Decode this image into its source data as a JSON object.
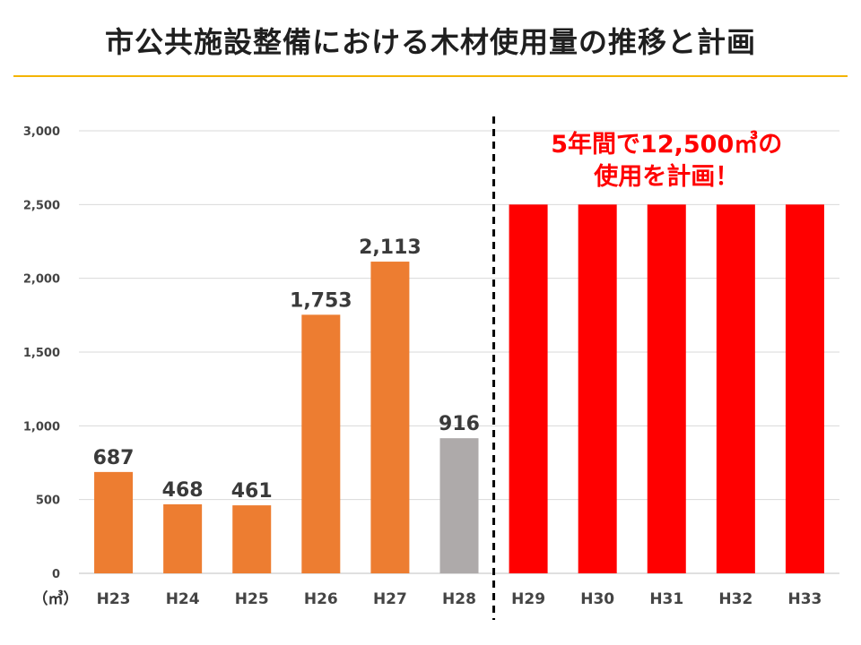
{
  "title": "市公共施設整備における木材使用量の推移と計画",
  "unit_label": "（㎥）",
  "annotation": {
    "line1": "5年間で12,500㎥の",
    "line2": "使用を計画！"
  },
  "colors": {
    "actual": "#ed7d31",
    "latest": "#aeaaaa",
    "plan": "#ff0000",
    "grid": "#d9d9d9",
    "accent_rule": "#f4b400"
  },
  "chart_data": {
    "type": "bar",
    "categories": [
      "H23",
      "H24",
      "H25",
      "H26",
      "H27",
      "H28",
      "H29",
      "H30",
      "H31",
      "H32",
      "H33"
    ],
    "values": [
      687,
      468,
      461,
      1753,
      2113,
      916,
      2500,
      2500,
      2500,
      2500,
      2500
    ],
    "data_labels": [
      "687",
      "468",
      "461",
      "1,753",
      "2,113",
      "916",
      "",
      "",
      "",
      "",
      ""
    ],
    "bar_kinds": [
      "actual",
      "actual",
      "actual",
      "actual",
      "actual",
      "latest",
      "plan",
      "plan",
      "plan",
      "plan",
      "plan"
    ],
    "title": "市公共施設整備における木材使用量の推移と計画",
    "xlabel": "",
    "ylabel": "（㎥）",
    "ylim": [
      0,
      3000
    ],
    "yticks": [
      0,
      500,
      1000,
      1500,
      2000,
      2500,
      3000
    ],
    "ytick_labels": [
      "0",
      "500",
      "1,000",
      "1,500",
      "2,000",
      "2,500",
      "3,000"
    ],
    "grid": true,
    "legend": "none",
    "divider_between": [
      "H28",
      "H29"
    ]
  }
}
